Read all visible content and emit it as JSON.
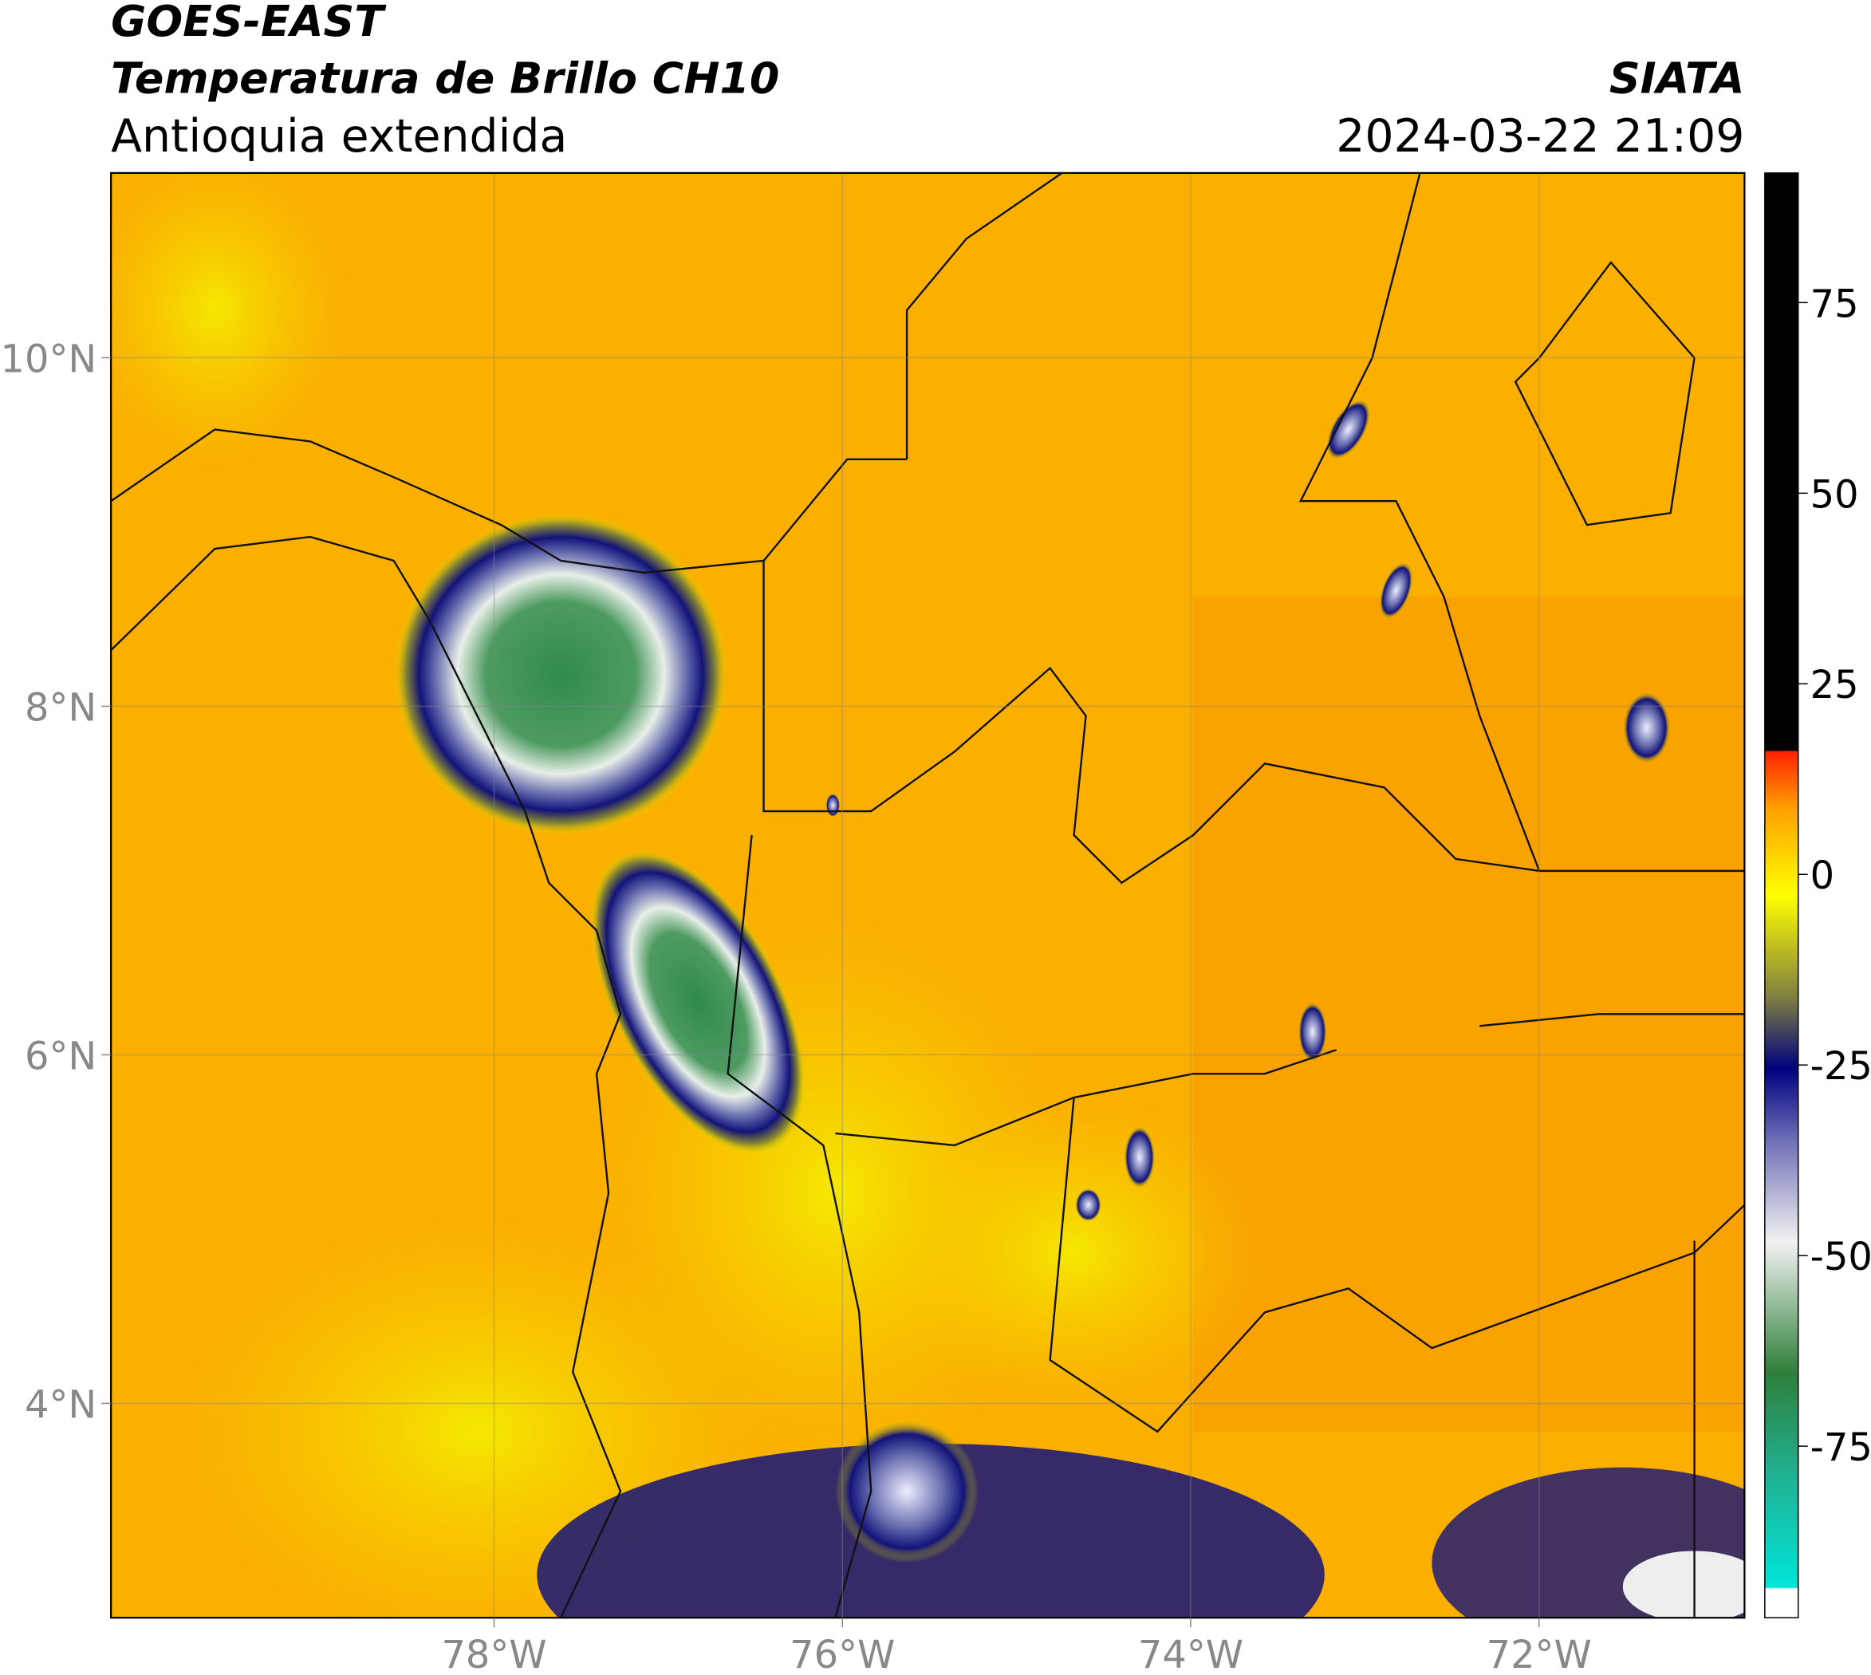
{
  "header": {
    "title": "GOES-EAST",
    "subtitle": "Temperatura de Brillo CH10",
    "region": "Antioquia extendida",
    "source": "SIATA",
    "datetime": "2024-03-22 21:09"
  },
  "map": {
    "xlim": [
      -80.2,
      -70.82
    ],
    "ylim": [
      2.77,
      11.06
    ],
    "xticks": [
      {
        "value": -78,
        "label": "78°W"
      },
      {
        "value": -76,
        "label": "76°W"
      },
      {
        "value": -74,
        "label": "74°W"
      },
      {
        "value": -72,
        "label": "72°W"
      }
    ],
    "yticks": [
      {
        "value": 4,
        "label": "4°N"
      },
      {
        "value": 6,
        "label": "6°N"
      },
      {
        "value": 8,
        "label": "8°N"
      },
      {
        "value": 10,
        "label": "10°N"
      }
    ],
    "grid": true
  },
  "colorbar": {
    "lim": [
      -97.5,
      92
    ],
    "ticks": [
      75,
      50,
      25,
      0,
      -25,
      -50,
      -75
    ]
  }
}
